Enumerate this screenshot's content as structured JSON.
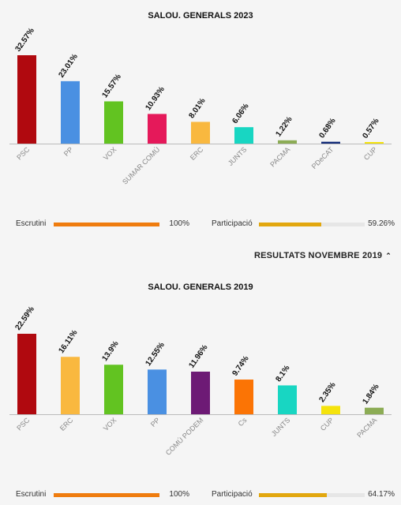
{
  "charts": [
    {
      "title": "SALOU. GENERALS 2023",
      "chart_data": {
        "type": "bar",
        "title": "SALOU. GENERALS 2023",
        "categories": [
          "PSC",
          "PP",
          "VOX",
          "SUMAR COMÚ",
          "ERC",
          "JUNTS",
          "PACMA",
          "PDeCAT",
          "CUP"
        ],
        "values": [
          32.57,
          23.01,
          15.57,
          10.93,
          8.01,
          6.06,
          1.22,
          0.68,
          0.57
        ],
        "value_labels": [
          "32.57%",
          "23.01%",
          "15.57%",
          "10.93%",
          "8.01%",
          "6.06%",
          "1.22%",
          "0.68%",
          "0.57%"
        ],
        "colors": [
          "#b0090f",
          "#4a90e2",
          "#62c321",
          "#e5195a",
          "#f9b83f",
          "#18d6c2",
          "#8cac55",
          "#112a78",
          "#f5e30c"
        ],
        "ylim": [
          0,
          32.57
        ]
      },
      "stats": {
        "escrutini_label": "Escrutini",
        "escrutini_value": "100%",
        "escrutini_fraction": 1.0,
        "participacio_label": "Participació",
        "participacio_value": "59.26%",
        "participacio_fraction": 0.5926
      }
    },
    {
      "title": "SALOU. GENERALS 2019",
      "chart_data": {
        "type": "bar",
        "title": "SALOU. GENERALS 2019",
        "categories": [
          "PSC",
          "ERC",
          "VOX",
          "PP",
          "COMÚ PODEM",
          "Cs",
          "JUNTS",
          "CUP",
          "PACMA"
        ],
        "values": [
          22.59,
          16.11,
          13.9,
          12.55,
          11.96,
          9.74,
          8.1,
          2.35,
          1.84
        ],
        "value_labels": [
          "22.59%",
          "16.11%",
          "13.9%",
          "12.55%",
          "11.96%",
          "9.74%",
          "8.1%",
          "2.35%",
          "1.84%"
        ],
        "colors": [
          "#b0090f",
          "#f9b83f",
          "#62c321",
          "#4a90e2",
          "#6d1a75",
          "#fb7405",
          "#18d6c2",
          "#f5e30c",
          "#8cac55"
        ],
        "ylim": [
          0,
          22.59
        ]
      },
      "stats": {
        "escrutini_label": "Escrutini",
        "escrutini_value": "100%",
        "escrutini_fraction": 1.0,
        "participacio_label": "Participació",
        "participacio_value": "64.17%",
        "participacio_fraction": 0.6417
      }
    }
  ],
  "toggle": {
    "label": "RESULTATS NOVEMBRE 2019",
    "icon": "chevron-up-icon"
  },
  "colors": {
    "escrutini_bar": "#ef7c0e",
    "participacio_bar": "#e2a70e",
    "track": "#e6e6e6"
  }
}
